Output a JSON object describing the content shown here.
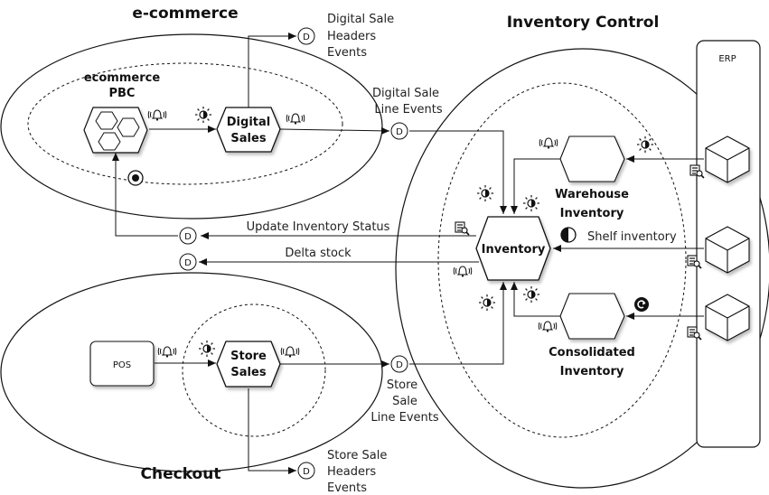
{
  "titles": {
    "ecommerce": "e-commerce",
    "inventory_control": "Inventory Control",
    "checkout": "Checkout"
  },
  "nodes": {
    "ecommerce_pbc_line1": "ecommerce",
    "ecommerce_pbc_line2": "PBC",
    "digital_sales_line1": "Digital",
    "digital_sales_line2": "Sales",
    "store_sales_line1": "Store",
    "store_sales_line2": "Sales",
    "pos": "POS",
    "inventory": "Inventory",
    "warehouse_line1": "Warehouse",
    "warehouse_line2": "Inventory",
    "consolidated_line1": "Consolidated",
    "consolidated_line2": "Inventory",
    "erp": "ERP"
  },
  "events": {
    "d_symbol": "D",
    "digital_sale_headers": [
      "Digital Sale",
      "Headers",
      "Events"
    ],
    "digital_sale_line": [
      "Digital Sale",
      "Line Events"
    ],
    "update_inventory_status": "Update Inventory Status",
    "delta_stock": "Delta stock",
    "store_sale_line": [
      "Store",
      "Sale",
      "Line Events"
    ],
    "store_sale_headers": [
      "Store Sale",
      "Headers",
      "Events"
    ],
    "shelf_inventory": "Shelf inventory"
  },
  "icons": [
    "alarm-bell-icon",
    "sun-icon",
    "half-circle-icon",
    "target-icon",
    "refresh-icon",
    "eq-search-icon",
    "cube-icon",
    "hexagon-icon"
  ]
}
